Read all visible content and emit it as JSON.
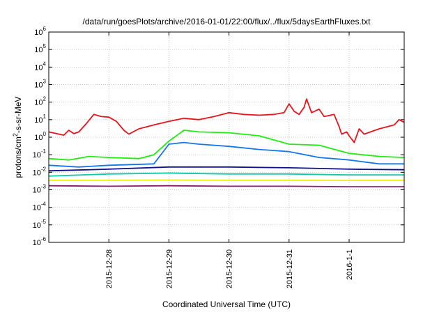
{
  "chart_data": {
    "type": "line",
    "title": "/data/run/goesPlots/archive/2016-01-01/22:00/flux/../flux/5daysEarthFluxes.txt",
    "xlabel": "Coordinated Universal Time (UTC)",
    "ylabel_parts": {
      "base": "protons/cm",
      "sup": "2",
      "rest": "-s-sr-MeV"
    },
    "y_scale": "log",
    "ylim": [
      1e-06,
      1000000.0
    ],
    "y_ticks": [
      {
        "value": 1e-06,
        "base": "10",
        "exp": "-6"
      },
      {
        "value": 1e-05,
        "base": "10",
        "exp": "-5"
      },
      {
        "value": 0.0001,
        "base": "10",
        "exp": "-4"
      },
      {
        "value": 0.001,
        "base": "10",
        "exp": "-3"
      },
      {
        "value": 0.01,
        "base": "10",
        "exp": "-2"
      },
      {
        "value": 0.1,
        "base": "10",
        "exp": "-1"
      },
      {
        "value": 1.0,
        "base": "10",
        "exp": "0"
      },
      {
        "value": 10.0,
        "base": "10",
        "exp": "1"
      },
      {
        "value": 100.0,
        "base": "10",
        "exp": "2"
      },
      {
        "value": 1000.0,
        "base": "10",
        "exp": "3"
      },
      {
        "value": 10000.0,
        "base": "10",
        "exp": "4"
      },
      {
        "value": 100000.0,
        "base": "10",
        "exp": "5"
      },
      {
        "value": 1000000.0,
        "base": "10",
        "exp": "6"
      }
    ],
    "xlim": [
      "2015-12-27 00:00",
      "2016-01-01 22:00"
    ],
    "x_ticks": [
      {
        "value": "2015-12-28 00:00",
        "label": "2015-12-28"
      },
      {
        "value": "2015-12-29 00:00",
        "label": "2015-12-29"
      },
      {
        "value": "2015-12-30 00:00",
        "label": "2015-12-30"
      },
      {
        "value": "2015-12-31 00:00",
        "label": "2015-12-31"
      },
      {
        "value": "2016-01-01 00:00",
        "label": "2016-1-1"
      }
    ],
    "grid": true,
    "series": [
      {
        "color": "#e8141c",
        "points": [
          [
            "2015-12-27 00:00",
            2
          ],
          [
            "2015-12-27 06:00",
            1.3
          ],
          [
            "2015-12-27 08:00",
            2.5
          ],
          [
            "2015-12-27 10:00",
            1.6
          ],
          [
            "2015-12-27 12:00",
            2
          ],
          [
            "2015-12-27 15:00",
            6
          ],
          [
            "2015-12-27 18:00",
            20
          ],
          [
            "2015-12-27 21:00",
            15
          ],
          [
            "2015-12-28 00:00",
            14
          ],
          [
            "2015-12-28 03:00",
            8
          ],
          [
            "2015-12-28 06:00",
            2.5
          ],
          [
            "2015-12-28 08:00",
            1.5
          ],
          [
            "2015-12-28 12:00",
            3
          ],
          [
            "2015-12-28 18:00",
            5
          ],
          [
            "2015-12-29 00:00",
            8
          ],
          [
            "2015-12-29 06:00",
            12
          ],
          [
            "2015-12-29 12:00",
            10
          ],
          [
            "2015-12-29 18:00",
            15
          ],
          [
            "2015-12-30 00:00",
            25
          ],
          [
            "2015-12-30 06:00",
            20
          ],
          [
            "2015-12-30 12:00",
            18
          ],
          [
            "2015-12-30 18:00",
            20
          ],
          [
            "2015-12-30 22:00",
            25
          ],
          [
            "2015-12-31 00:00",
            80
          ],
          [
            "2015-12-31 02:00",
            30
          ],
          [
            "2015-12-31 04:00",
            20
          ],
          [
            "2015-12-31 06:00",
            50
          ],
          [
            "2015-12-31 07:00",
            150
          ],
          [
            "2015-12-31 09:00",
            25
          ],
          [
            "2015-12-31 12:00",
            40
          ],
          [
            "2015-12-31 14:00",
            15
          ],
          [
            "2015-12-31 18:00",
            20
          ],
          [
            "2015-12-31 20:00",
            4
          ],
          [
            "2015-12-31 21:00",
            1.5
          ],
          [
            "2015-12-31 23:00",
            2
          ],
          [
            "2016-01-01 00:00",
            1.2
          ],
          [
            "2016-01-01 02:00",
            0.5
          ],
          [
            "2016-01-01 04:00",
            3
          ],
          [
            "2016-01-01 06:00",
            1.5
          ],
          [
            "2016-01-01 12:00",
            3
          ],
          [
            "2016-01-01 18:00",
            5
          ],
          [
            "2016-01-01 20:00",
            10
          ],
          [
            "2016-01-01 22:00",
            7
          ]
        ]
      },
      {
        "color": "#20ee10",
        "points": [
          [
            "2015-12-27 00:00",
            0.06
          ],
          [
            "2015-12-27 08:00",
            0.05
          ],
          [
            "2015-12-27 16:00",
            0.08
          ],
          [
            "2015-12-28 00:00",
            0.07
          ],
          [
            "2015-12-28 12:00",
            0.06
          ],
          [
            "2015-12-28 18:00",
            0.1
          ],
          [
            "2015-12-29 00:00",
            0.6
          ],
          [
            "2015-12-29 06:00",
            2.5
          ],
          [
            "2015-12-29 12:00",
            2
          ],
          [
            "2015-12-30 00:00",
            1.8
          ],
          [
            "2015-12-30 12:00",
            1.2
          ],
          [
            "2015-12-31 00:00",
            0.4
          ],
          [
            "2015-12-31 12:00",
            0.35
          ],
          [
            "2016-01-01 00:00",
            0.12
          ],
          [
            "2016-01-01 12:00",
            0.08
          ],
          [
            "2016-01-01 22:00",
            0.07
          ]
        ]
      },
      {
        "color": "#1077ee",
        "points": [
          [
            "2015-12-27 00:00",
            0.025
          ],
          [
            "2015-12-27 12:00",
            0.02
          ],
          [
            "2015-12-28 00:00",
            0.025
          ],
          [
            "2015-12-28 18:00",
            0.03
          ],
          [
            "2015-12-29 00:00",
            0.4
          ],
          [
            "2015-12-29 06:00",
            0.5
          ],
          [
            "2015-12-29 12:00",
            0.4
          ],
          [
            "2015-12-30 00:00",
            0.3
          ],
          [
            "2015-12-30 12:00",
            0.2
          ],
          [
            "2015-12-31 00:00",
            0.15
          ],
          [
            "2015-12-31 12:00",
            0.07
          ],
          [
            "2016-01-01 00:00",
            0.05
          ],
          [
            "2016-01-01 12:00",
            0.03
          ],
          [
            "2016-01-01 22:00",
            0.03
          ]
        ]
      },
      {
        "color": "#10108e",
        "points": [
          [
            "2015-12-27 00:00",
            0.012
          ],
          [
            "2015-12-28 00:00",
            0.015
          ],
          [
            "2015-12-29 00:00",
            0.02
          ],
          [
            "2015-12-30 00:00",
            0.02
          ],
          [
            "2015-12-31 00:00",
            0.018
          ],
          [
            "2016-01-01 00:00",
            0.015
          ],
          [
            "2016-01-01 22:00",
            0.014
          ]
        ]
      },
      {
        "color": "#10c8a8",
        "points": [
          [
            "2015-12-27 00:00",
            0.006
          ],
          [
            "2015-12-28 00:00",
            0.008
          ],
          [
            "2015-12-29 00:00",
            0.009
          ],
          [
            "2015-12-30 00:00",
            0.008
          ],
          [
            "2015-12-31 00:00",
            0.008
          ],
          [
            "2016-01-01 00:00",
            0.007
          ],
          [
            "2016-01-01 22:00",
            0.007
          ]
        ]
      },
      {
        "color": "#f2ee14",
        "points": [
          [
            "2015-12-27 00:00",
            0.0035
          ],
          [
            "2015-12-28 00:00",
            0.0035
          ],
          [
            "2015-12-29 00:00",
            0.0036
          ],
          [
            "2015-12-30 00:00",
            0.0035
          ],
          [
            "2015-12-31 00:00",
            0.0035
          ],
          [
            "2016-01-01 00:00",
            0.0034
          ],
          [
            "2016-01-01 22:00",
            0.0035
          ]
        ]
      },
      {
        "color": "#8a1a6e",
        "points": [
          [
            "2015-12-27 00:00",
            0.0017
          ],
          [
            "2015-12-28 00:00",
            0.0016
          ],
          [
            "2015-12-29 00:00",
            0.0017
          ],
          [
            "2015-12-30 00:00",
            0.0016
          ],
          [
            "2015-12-31 00:00",
            0.0016
          ],
          [
            "2016-01-01 00:00",
            0.0015
          ],
          [
            "2016-01-01 22:00",
            0.0015
          ]
        ]
      }
    ]
  }
}
